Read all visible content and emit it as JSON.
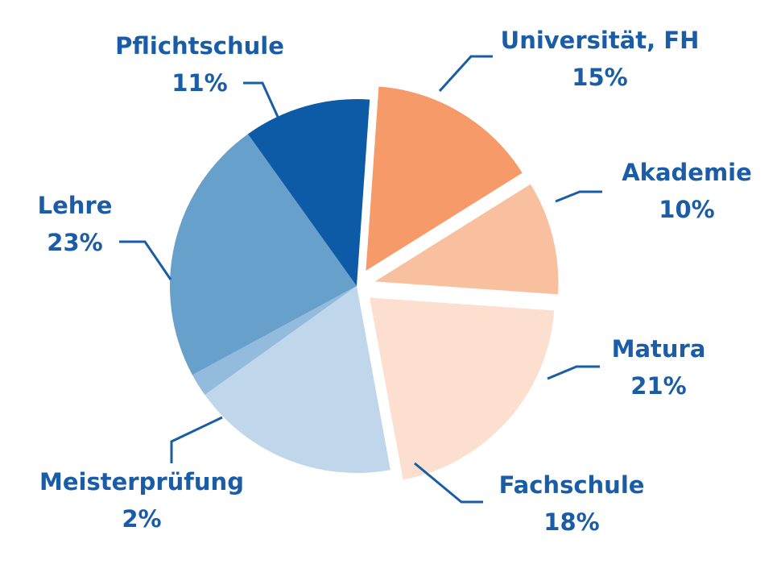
{
  "chart_data": {
    "type": "pie",
    "title": "",
    "colors": {
      "text": "#1a5da6",
      "leader": "#1a5da6"
    },
    "slices": [
      {
        "label": "Universität, FH",
        "value_label": "15%",
        "value": 15,
        "color": "#f59a68",
        "exploded": true
      },
      {
        "label": "Akademie",
        "value_label": "10%",
        "value": 10,
        "color": "#f8c09f",
        "exploded": true
      },
      {
        "label": "Matura",
        "value_label": "21%",
        "value": 21,
        "color": "#fcdfcf",
        "exploded": true
      },
      {
        "label": "Fachschule",
        "value_label": "18%",
        "value": 18,
        "color": "#c0d7eb",
        "exploded": false
      },
      {
        "label": "Meisterprüfung",
        "value_label": "2%",
        "value": 2,
        "color": "#93bbdd",
        "exploded": false
      },
      {
        "label": "Lehre",
        "value_label": "23%",
        "value": 23,
        "color": "#68a0cc",
        "exploded": false
      },
      {
        "label": "Pflichtschule",
        "value_label": "11%",
        "value": 11,
        "color": "#0d5ba6",
        "exploded": false
      }
    ]
  }
}
